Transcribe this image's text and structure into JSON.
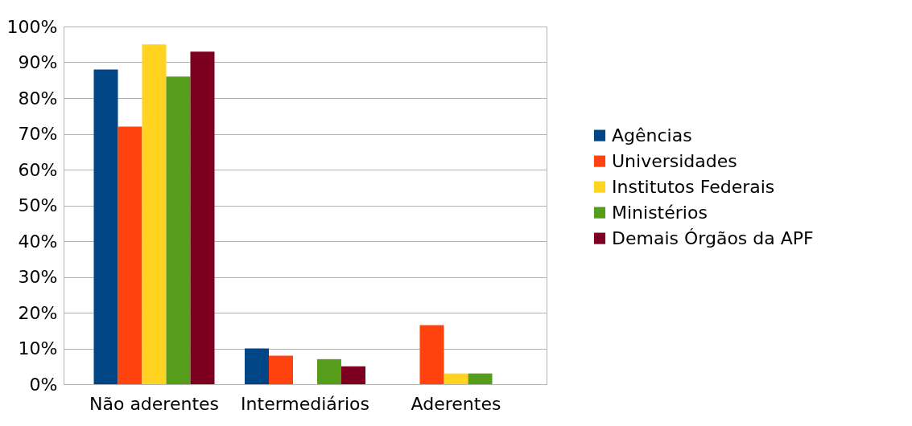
{
  "chart_data": {
    "type": "bar",
    "categories": [
      "Não aderentes",
      "Intermediários",
      "Aderentes"
    ],
    "series": [
      {
        "name": "Agências",
        "color": "#004586",
        "values": [
          88,
          10,
          0
        ]
      },
      {
        "name": "Universidades",
        "color": "#ff420e",
        "values": [
          72,
          8,
          16.5
        ]
      },
      {
        "name": "Institutos Federais",
        "color": "#ffd320",
        "values": [
          95,
          0,
          3
        ]
      },
      {
        "name": "Ministérios",
        "color": "#579d1c",
        "values": [
          86,
          7,
          3
        ]
      },
      {
        "name": "Demais Órgãos da APF",
        "color": "#7e0021",
        "values": [
          93,
          5,
          0
        ]
      }
    ],
    "ylim": [
      0,
      100
    ],
    "yticks": [
      {
        "value": 0,
        "label": "0%"
      },
      {
        "value": 10,
        "label": "10%"
      },
      {
        "value": 20,
        "label": "20%"
      },
      {
        "value": 30,
        "label": "30%"
      },
      {
        "value": 40,
        "label": "40%"
      },
      {
        "value": 50,
        "label": "50%"
      },
      {
        "value": 60,
        "label": "60%"
      },
      {
        "value": 70,
        "label": "70%"
      },
      {
        "value": 80,
        "label": "80%"
      },
      {
        "value": 90,
        "label": "90%"
      },
      {
        "value": 100,
        "label": "100%"
      }
    ],
    "grid": true,
    "legend": "right"
  }
}
